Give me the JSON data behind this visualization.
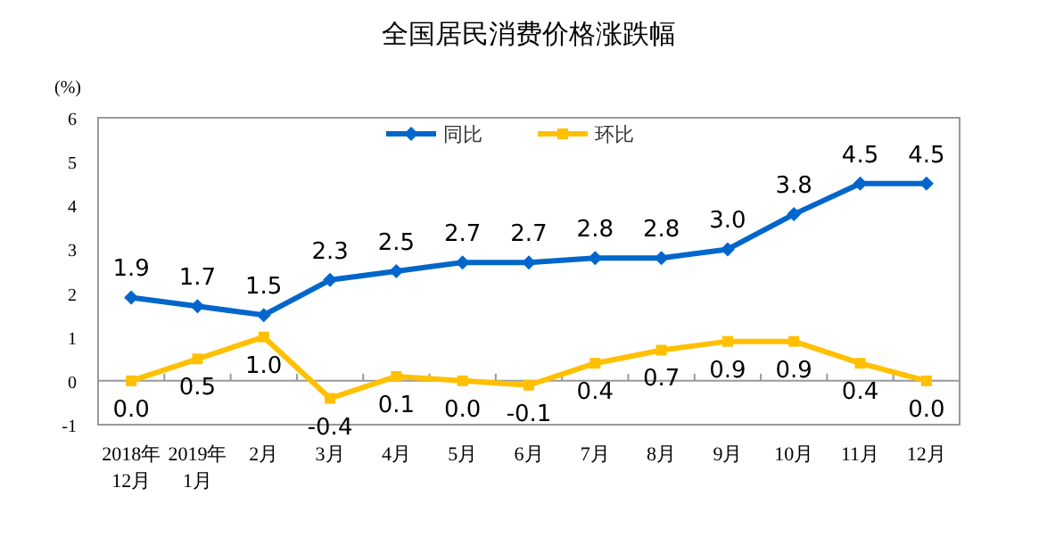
{
  "chart_data": {
    "type": "line",
    "title": "全国居民消费价格涨跌幅",
    "ylabel": "(%)",
    "categories": [
      "2018年\n12月",
      "2019年\n1月",
      "2月",
      "3月",
      "4月",
      "5月",
      "6月",
      "7月",
      "8月",
      "9月",
      "10月",
      "11月",
      "12月"
    ],
    "series": [
      {
        "name": "同比",
        "color": "#0066cc",
        "marker": "diamond",
        "values": [
          1.9,
          1.7,
          1.5,
          2.3,
          2.5,
          2.7,
          2.7,
          2.8,
          2.8,
          3.0,
          3.8,
          4.5,
          4.5
        ],
        "value_labels": [
          "1.9",
          "1.7",
          "1.5",
          "2.3",
          "2.5",
          "2.7",
          "2.7",
          "2.8",
          "2.8",
          "3.0",
          "3.8",
          "4.5",
          "4.5"
        ]
      },
      {
        "name": "环比",
        "color": "#ffc000",
        "marker": "square",
        "values": [
          0.0,
          0.5,
          1.0,
          -0.4,
          0.1,
          0.0,
          -0.1,
          0.4,
          0.7,
          0.9,
          0.9,
          0.4,
          0.0
        ],
        "value_labels": [
          "0.0",
          "0.5",
          "1.0",
          "-0.4",
          "0.1",
          "0.0",
          "-0.1",
          "0.4",
          "0.7",
          "0.9",
          "0.9",
          "0.4",
          "0.0"
        ]
      }
    ],
    "ylim": [
      -1,
      6
    ],
    "yticks": [
      -1,
      0,
      1,
      2,
      3,
      4,
      5,
      6
    ],
    "legend": "top"
  }
}
